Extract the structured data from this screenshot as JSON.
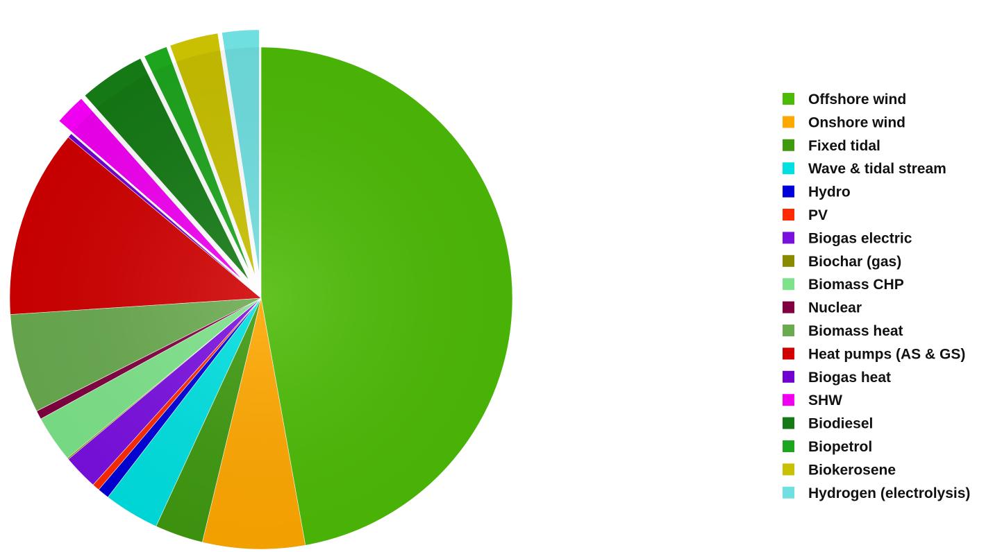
{
  "chart_data": {
    "type": "pie",
    "title": "",
    "legend_position": "right",
    "slices": [
      {
        "label": "Offshore wind",
        "value": 50.2,
        "color": "#4dbb06",
        "exploded": false
      },
      {
        "label": "Onshore wind",
        "value": 7.0,
        "color": "#ffa800",
        "exploded": false
      },
      {
        "label": "Fixed tidal",
        "value": 3.3,
        "color": "#3f9a10",
        "exploded": false
      },
      {
        "label": "Wave & tidal stream",
        "value": 3.8,
        "color": "#00e0e0",
        "exploded": false
      },
      {
        "label": "Hydro",
        "value": 0.8,
        "color": "#0000d8",
        "exploded": false
      },
      {
        "label": "PV",
        "value": 0.5,
        "color": "#ff2a00",
        "exploded": false
      },
      {
        "label": "Biogas electric",
        "value": 2.4,
        "color": "#7a10e0",
        "exploded": false
      },
      {
        "label": "Biochar (gas)",
        "value": 0.1,
        "color": "#8a8a00",
        "exploded": false
      },
      {
        "label": "Biomass CHP",
        "value": 3.2,
        "color": "#7de38a",
        "exploded": false
      },
      {
        "label": "Nuclear",
        "value": 0.6,
        "color": "#800040",
        "exploded": false
      },
      {
        "label": "Biomass heat",
        "value": 6.8,
        "color": "#6aab50",
        "exploded": false
      },
      {
        "label": "Heat pumps (AS & GS)",
        "value": 12.9,
        "color": "#d00000",
        "exploded": false
      },
      {
        "label": "Biogas heat",
        "value": 0.3,
        "color": "#7000d0",
        "exploded": false
      },
      {
        "label": "SHW",
        "value": 2.2,
        "color": "#f000f0",
        "exploded": true
      },
      {
        "label": "Biodiesel",
        "value": 4.6,
        "color": "#157a15",
        "exploded": true
      },
      {
        "label": "Biopetrol",
        "value": 1.7,
        "color": "#1ea51e",
        "exploded": true
      },
      {
        "label": "Biokerosene",
        "value": 3.4,
        "color": "#c8c000",
        "exploded": true
      },
      {
        "label": "Hydrogen (electrolysis)",
        "value": 2.6,
        "color": "#70dfe0",
        "exploded": true
      }
    ]
  }
}
